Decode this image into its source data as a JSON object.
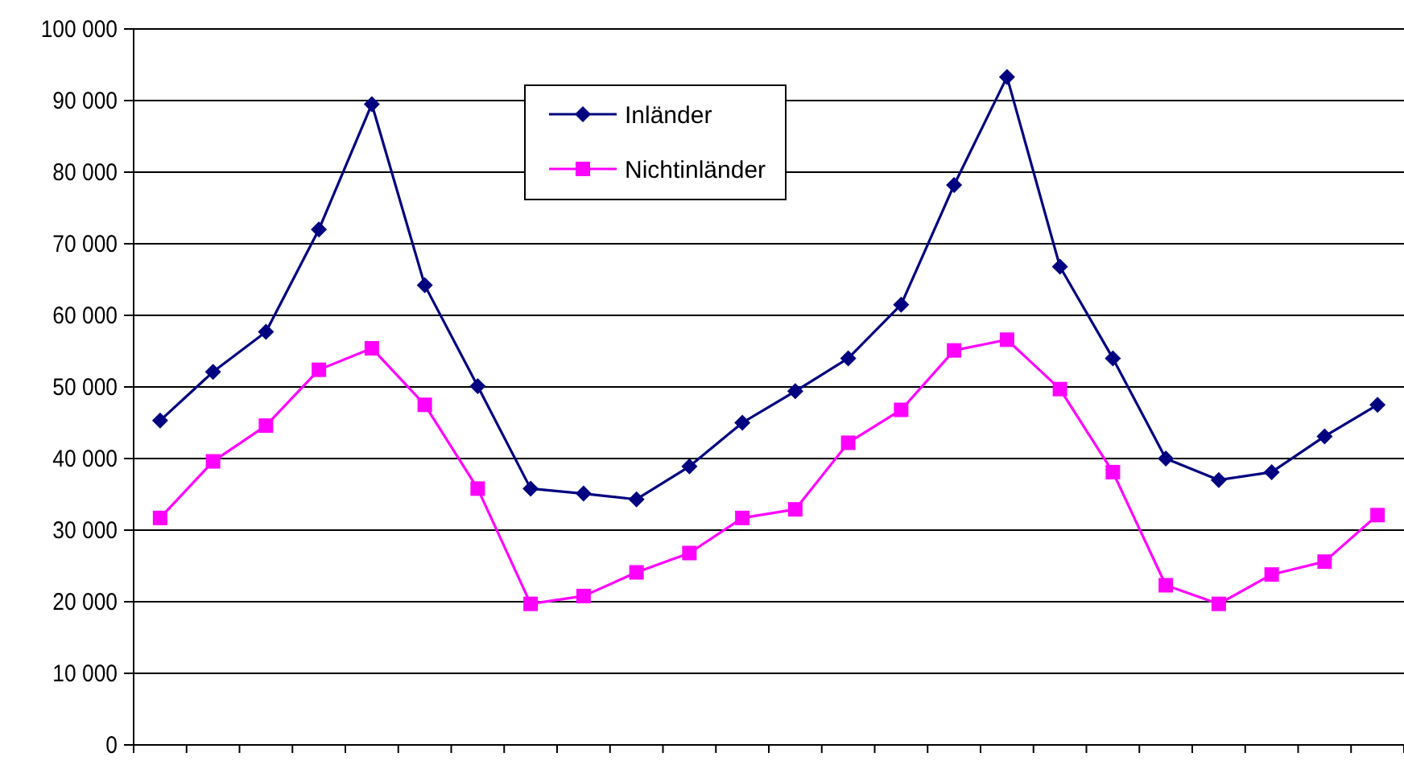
{
  "chart_data": {
    "type": "line",
    "categories": [
      null,
      null,
      null,
      null,
      null,
      null,
      null,
      null,
      null,
      null,
      null,
      null,
      null,
      null,
      null,
      null,
      null,
      null,
      null,
      null,
      null,
      null,
      null,
      null
    ],
    "series": [
      {
        "name": "Inländer",
        "color": "#000080",
        "marker": "diamond",
        "values": [
          45300,
          52100,
          57700,
          72000,
          89500,
          64200,
          50100,
          35800,
          35100,
          34300,
          38900,
          45000,
          49400,
          54000,
          61500,
          78200,
          93300,
          66800,
          54000,
          40000,
          37000,
          38100,
          43100,
          47500
        ]
      },
      {
        "name": "Nichtinländer",
        "color": "#ff00ff",
        "marker": "square",
        "values": [
          31700,
          39600,
          44600,
          52400,
          55400,
          47500,
          35800,
          19700,
          20800,
          24100,
          26800,
          31700,
          32900,
          42200,
          46800,
          55100,
          56600,
          49700,
          38100,
          22300,
          19700,
          23800,
          25600,
          32100
        ]
      }
    ],
    "ylim": [
      0,
      100000
    ],
    "yticks": [
      {
        "value": 0,
        "label": "0"
      },
      {
        "value": 10000,
        "label": "10 000"
      },
      {
        "value": 20000,
        "label": "20 000"
      },
      {
        "value": 30000,
        "label": "30 000"
      },
      {
        "value": 40000,
        "label": "40 000"
      },
      {
        "value": 50000,
        "label": "50 000"
      },
      {
        "value": 60000,
        "label": "60 000"
      },
      {
        "value": 70000,
        "label": "70 000"
      },
      {
        "value": 80000,
        "label": "80 000"
      },
      {
        "value": 90000,
        "label": "90 000"
      },
      {
        "value": 100000,
        "label": "100 000"
      }
    ],
    "grid": "y",
    "legend": "top"
  }
}
